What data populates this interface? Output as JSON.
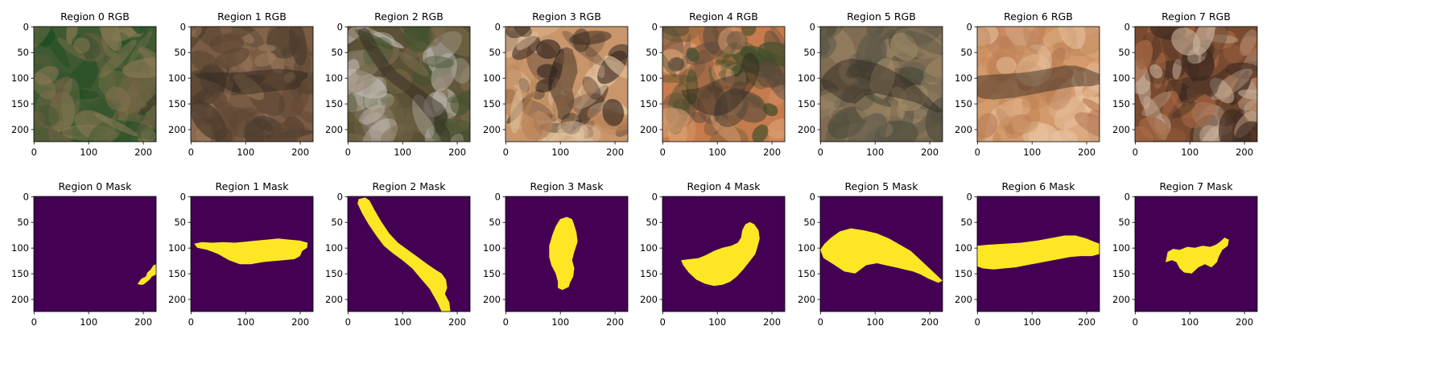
{
  "figure": {
    "ticks_y": [
      "0",
      "50",
      "100",
      "150",
      "200"
    ],
    "ticks_x": [
      "0",
      "100",
      "200"
    ],
    "row_rgb": [
      {
        "title": "Region 0 RGB",
        "icon": "satellite-image",
        "palette": [
          "#3f5a32",
          "#6e6142",
          "#1f4d23",
          "#8c7a55"
        ]
      },
      {
        "title": "Region 1 RGB",
        "icon": "satellite-image",
        "palette": [
          "#7a5b43",
          "#5d4634",
          "#9a7a5c",
          "#4a3a2c"
        ]
      },
      {
        "title": "Region 2 RGB",
        "icon": "satellite-image",
        "palette": [
          "#5a5136",
          "#44532f",
          "#7a6a4b",
          "#bfb8b0"
        ]
      },
      {
        "title": "Region 3 RGB",
        "icon": "satellite-image",
        "palette": [
          "#c9966b",
          "#e2c3a0",
          "#b78257",
          "#3a2a22"
        ]
      },
      {
        "title": "Region 4 RGB",
        "icon": "satellite-image",
        "palette": [
          "#c67b4c",
          "#5a4a3b",
          "#3d4d2a",
          "#e0a276"
        ]
      },
      {
        "title": "Region 5 RGB",
        "icon": "satellite-image",
        "palette": [
          "#7f6c52",
          "#5e5a4b",
          "#a08a68",
          "#4a4a3a"
        ]
      },
      {
        "title": "Region 6 RGB",
        "icon": "satellite-image",
        "palette": [
          "#d39a6b",
          "#e8c3a0",
          "#c58758",
          "#b37852"
        ]
      },
      {
        "title": "Region 7 RGB",
        "icon": "satellite-image",
        "palette": [
          "#7a4a31",
          "#a86a44",
          "#3d2a20",
          "#c8b09a"
        ]
      }
    ],
    "row_mask": [
      {
        "title": "Region 0 Mask"
      },
      {
        "title": "Region 1 Mask"
      },
      {
        "title": "Region 2 Mask"
      },
      {
        "title": "Region 3 Mask"
      },
      {
        "title": "Region 4 Mask"
      },
      {
        "title": "Region 5 Mask"
      },
      {
        "title": "Region 6 Mask"
      },
      {
        "title": "Region 7 Mask"
      }
    ],
    "mask_colors": {
      "background": "#440154",
      "foreground": "#fde725"
    }
  }
}
